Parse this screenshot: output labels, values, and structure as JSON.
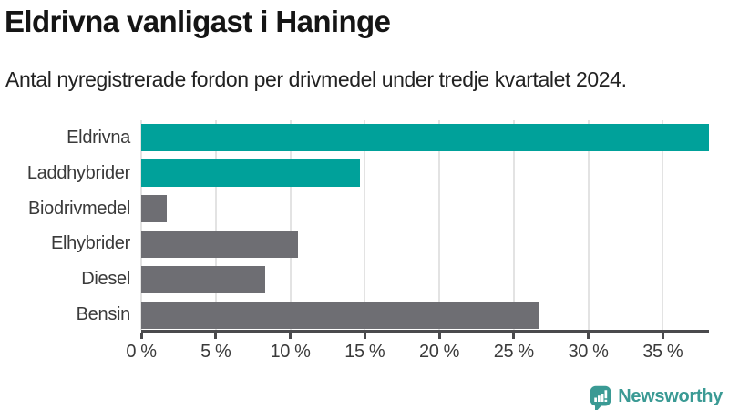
{
  "header": {
    "title": "Eldrivna vanligast i Haninge",
    "subtitle": "Antal nyregistrerade fordon per drivmedel under tredje kvartalet 2024."
  },
  "chart_data": {
    "type": "bar",
    "orientation": "horizontal",
    "title": "Eldrivna vanligast i Haninge",
    "subtitle": "Antal nyregistrerade fordon per drivmedel under tredje kvartalet 2024.",
    "categories": [
      "Eldrivna",
      "Laddhybrider",
      "Biodrivmedel",
      "Elhybrider",
      "Diesel",
      "Bensin"
    ],
    "values": [
      38.1,
      14.7,
      1.7,
      10.5,
      8.3,
      26.7
    ],
    "unit": "%",
    "bar_colors": [
      "#00a19a",
      "#00a19a",
      "#6e6e73",
      "#6e6e73",
      "#6e6e73",
      "#6e6e73"
    ],
    "xlim": [
      0,
      38.1
    ],
    "x_ticks": [
      0,
      5,
      10,
      15,
      20,
      25,
      30,
      35
    ],
    "x_tick_labels": [
      "0 %",
      "5 %",
      "10 %",
      "15 %",
      "20 %",
      "25 %",
      "30 %",
      "35 %"
    ],
    "grid": true,
    "legend": false,
    "xlabel": "",
    "ylabel": ""
  },
  "colors": {
    "accent_teal": "#00a19a",
    "neutral_gray": "#6e6e73",
    "axis": "#4a4a4d",
    "gridline": "#e3e3e3",
    "text_dark": "#151515",
    "text_label": "#3a3a3a",
    "brand_teal": "#3a9a94"
  },
  "footer": {
    "brand": "Newsworthy"
  }
}
